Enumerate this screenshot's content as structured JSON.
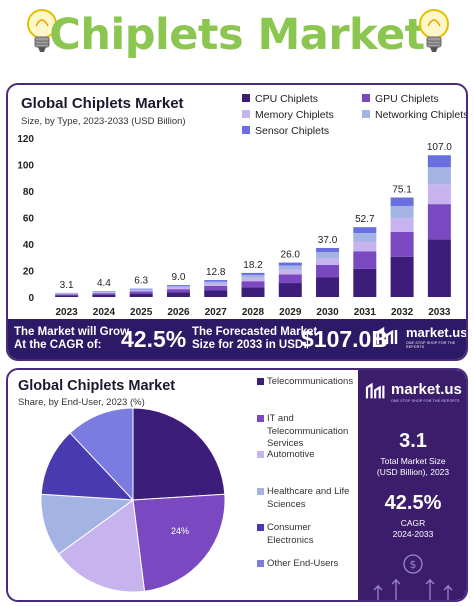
{
  "header": {
    "title": "Chiplets Market"
  },
  "chart_data": [
    {
      "type": "bar",
      "stacked": true,
      "title": "Global Chiplets Market",
      "subtitle": "Size, by Type, 2023-2033 (USD Billion)",
      "categories": [
        "2023",
        "2024",
        "2025",
        "2026",
        "2027",
        "2028",
        "2029",
        "2030",
        "2031",
        "2032",
        "2033"
      ],
      "totals": [
        3.1,
        4.4,
        6.3,
        9.0,
        12.8,
        18.2,
        26.0,
        37.0,
        52.7,
        75.1,
        107.0
      ],
      "total_labels": [
        "3.1",
        "4.4",
        "6.3",
        "9.0",
        "12.8",
        "18.2",
        "26.0",
        "37.0",
        "52.7",
        "75.1",
        "107.0"
      ],
      "y_ticks": [
        0,
        20,
        40,
        60,
        80,
        100,
        120
      ],
      "y_tick_labels": [
        "0",
        "20",
        "40",
        "60",
        "80",
        "100",
        "120"
      ],
      "ylim": [
        0,
        120
      ],
      "grid": false,
      "legend_position": "top-right",
      "series": [
        {
          "name": "CPU Chiplets",
          "color": "#3d1d7a",
          "values": [
            1.26,
            1.78,
            2.55,
            3.65,
            5.18,
            7.37,
            10.53,
            14.99,
            21.34,
            30.42,
            43.34
          ]
        },
        {
          "name": "GPU Chiplets",
          "color": "#7a48c0",
          "values": [
            0.78,
            1.1,
            1.58,
            2.25,
            3.2,
            4.55,
            6.5,
            9.25,
            13.18,
            18.78,
            26.75
          ]
        },
        {
          "name": "Memory Chiplets",
          "color": "#c7b3ee",
          "values": [
            0.43,
            0.62,
            0.88,
            1.26,
            1.79,
            2.55,
            3.64,
            5.18,
            7.38,
            10.51,
            14.98
          ]
        },
        {
          "name": "Networking Chiplets",
          "color": "#a3b3e3",
          "values": [
            0.37,
            0.53,
            0.76,
            1.08,
            1.54,
            2.18,
            3.12,
            4.44,
            6.32,
            9.01,
            12.84
          ]
        },
        {
          "name": "Sensor Chiplets",
          "color": "#6a6fe0",
          "values": [
            0.26,
            0.37,
            0.53,
            0.76,
            1.09,
            1.55,
            2.21,
            3.14,
            4.48,
            6.38,
            9.09
          ]
        }
      ]
    },
    {
      "type": "pie",
      "title": "Global Chiplets Market",
      "subtitle": "Share, by End-User, 2023 (%)",
      "slice_label": "24%",
      "slices": [
        {
          "name": "Telecommunications",
          "value": 24,
          "color": "#3d1d7a"
        },
        {
          "name": "IT and Telecommunication Services",
          "value": 24,
          "color": "#7a48c0"
        },
        {
          "name": "Automotive",
          "value": 17,
          "color": "#c7b3ee"
        },
        {
          "name": "Healthcare and Life Sciences",
          "value": 11,
          "color": "#a3b3e3"
        },
        {
          "name": "Consumer Electronics",
          "value": 12,
          "color": "#4a3ab0"
        },
        {
          "name": "Other End-Users",
          "value": 12,
          "color": "#7a7ce0"
        }
      ]
    }
  ],
  "legend1": [
    "CPU Chiplets",
    "GPU Chiplets",
    "Memory Chiplets",
    "Networking Chiplets",
    "Sensor Chiplets"
  ],
  "legend2": [
    "Telecommunications",
    "IT and Telecommunication Services",
    "Automotive",
    "Healthcare and Life Sciences",
    "Consumer Electronics",
    "Other End-Users"
  ],
  "banner": {
    "grow_line1": "The Market will Grow",
    "grow_line2": "At the CAGR of:",
    "cagr": "42.5%",
    "forecast_line1": "The Forecasted Market",
    "forecast_line2": "Size for 2033 in USD:",
    "forecast": "$107.0B",
    "logo": "market.us",
    "tagline": "ONE STOP SHOP FOR THE REPORTS"
  },
  "side": {
    "logo": "market.us",
    "tagline": "ONE STOP SHOP FOR THE REPORTS",
    "size_value": "3.1",
    "size_label1": "Total Market Size",
    "size_label2": "(USD Billion), 2023",
    "cagr_value": "42.5%",
    "cagr_label1": "CAGR",
    "cagr_label2": "2024-2033"
  },
  "colors": {
    "title_green": "#8ac650",
    "accent_purple": "#2d1a66",
    "side_purple": "#3b1d6b"
  }
}
